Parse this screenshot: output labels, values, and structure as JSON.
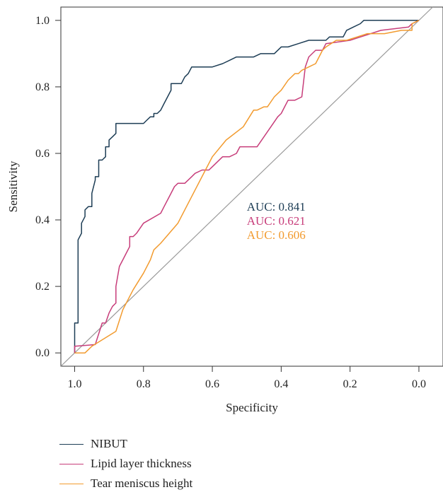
{
  "chart_data": {
    "type": "line",
    "title": "",
    "xlabel": "Specificity",
    "ylabel": "Sensitivity",
    "x_reversed": true,
    "xlim": [
      1.04,
      -0.07
    ],
    "ylim": [
      -0.04,
      1.04
    ],
    "x_ticks": [
      1.0,
      0.8,
      0.6,
      0.4,
      0.2,
      0.0
    ],
    "x_tick_labels": [
      "1.0",
      "0.8",
      "0.6",
      "0.4",
      "0.2",
      "0.0"
    ],
    "y_ticks": [
      0.0,
      0.2,
      0.4,
      0.6,
      0.8,
      1.0
    ],
    "y_tick_labels": [
      "0.0",
      "0.2",
      "0.4",
      "0.6",
      "0.8",
      "1.0"
    ],
    "grid": false,
    "legend_position": "bottom",
    "reference_line": {
      "color": "#9a9a9a",
      "points": [
        [
          1.04,
          -0.04
        ],
        [
          -0.04,
          1.04
        ]
      ]
    },
    "series": [
      {
        "name": "NIBUT",
        "color": "#1d3d55",
        "auc_label": "AUC: 0.841",
        "points": [
          [
            1.0,
            0.0
          ],
          [
            1.0,
            0.09
          ],
          [
            0.99,
            0.09
          ],
          [
            0.99,
            0.34
          ],
          [
            0.98,
            0.36
          ],
          [
            0.98,
            0.39
          ],
          [
            0.97,
            0.41
          ],
          [
            0.97,
            0.43
          ],
          [
            0.96,
            0.44
          ],
          [
            0.95,
            0.44
          ],
          [
            0.95,
            0.48
          ],
          [
            0.94,
            0.52
          ],
          [
            0.94,
            0.53
          ],
          [
            0.93,
            0.53
          ],
          [
            0.93,
            0.58
          ],
          [
            0.92,
            0.58
          ],
          [
            0.91,
            0.59
          ],
          [
            0.91,
            0.62
          ],
          [
            0.9,
            0.62
          ],
          [
            0.9,
            0.64
          ],
          [
            0.89,
            0.65
          ],
          [
            0.88,
            0.66
          ],
          [
            0.88,
            0.69
          ],
          [
            0.83,
            0.69
          ],
          [
            0.8,
            0.69
          ],
          [
            0.79,
            0.7
          ],
          [
            0.78,
            0.71
          ],
          [
            0.77,
            0.71
          ],
          [
            0.77,
            0.72
          ],
          [
            0.76,
            0.72
          ],
          [
            0.75,
            0.73
          ],
          [
            0.74,
            0.75
          ],
          [
            0.73,
            0.77
          ],
          [
            0.72,
            0.79
          ],
          [
            0.72,
            0.81
          ],
          [
            0.7,
            0.81
          ],
          [
            0.69,
            0.81
          ],
          [
            0.68,
            0.83
          ],
          [
            0.67,
            0.84
          ],
          [
            0.66,
            0.86
          ],
          [
            0.6,
            0.86
          ],
          [
            0.57,
            0.87
          ],
          [
            0.55,
            0.88
          ],
          [
            0.53,
            0.89
          ],
          [
            0.48,
            0.89
          ],
          [
            0.46,
            0.9
          ],
          [
            0.42,
            0.9
          ],
          [
            0.4,
            0.92
          ],
          [
            0.38,
            0.92
          ],
          [
            0.35,
            0.93
          ],
          [
            0.32,
            0.94
          ],
          [
            0.27,
            0.94
          ],
          [
            0.26,
            0.95
          ],
          [
            0.22,
            0.95
          ],
          [
            0.21,
            0.97
          ],
          [
            0.19,
            0.98
          ],
          [
            0.17,
            0.99
          ],
          [
            0.16,
            1.0
          ],
          [
            0.0,
            1.0
          ]
        ]
      },
      {
        "name": "Lipid layer thickness",
        "color": "#c73d7a",
        "auc_label": "AUC: 0.621",
        "points": [
          [
            1.0,
            0.0
          ],
          [
            1.0,
            0.02
          ],
          [
            0.94,
            0.025
          ],
          [
            0.92,
            0.09
          ],
          [
            0.91,
            0.09
          ],
          [
            0.9,
            0.12
          ],
          [
            0.89,
            0.14
          ],
          [
            0.88,
            0.15
          ],
          [
            0.88,
            0.2
          ],
          [
            0.87,
            0.26
          ],
          [
            0.86,
            0.28
          ],
          [
            0.85,
            0.3
          ],
          [
            0.84,
            0.32
          ],
          [
            0.84,
            0.35
          ],
          [
            0.83,
            0.35
          ],
          [
            0.82,
            0.36
          ],
          [
            0.8,
            0.39
          ],
          [
            0.75,
            0.42
          ],
          [
            0.74,
            0.44
          ],
          [
            0.72,
            0.48
          ],
          [
            0.71,
            0.5
          ],
          [
            0.7,
            0.51
          ],
          [
            0.68,
            0.51
          ],
          [
            0.66,
            0.53
          ],
          [
            0.65,
            0.54
          ],
          [
            0.63,
            0.55
          ],
          [
            0.61,
            0.55
          ],
          [
            0.6,
            0.56
          ],
          [
            0.57,
            0.59
          ],
          [
            0.55,
            0.59
          ],
          [
            0.53,
            0.6
          ],
          [
            0.52,
            0.62
          ],
          [
            0.47,
            0.62
          ],
          [
            0.43,
            0.68
          ],
          [
            0.41,
            0.71
          ],
          [
            0.4,
            0.72
          ],
          [
            0.39,
            0.74
          ],
          [
            0.38,
            0.76
          ],
          [
            0.36,
            0.76
          ],
          [
            0.34,
            0.77
          ],
          [
            0.33,
            0.86
          ],
          [
            0.32,
            0.89
          ],
          [
            0.31,
            0.9
          ],
          [
            0.3,
            0.91
          ],
          [
            0.28,
            0.91
          ],
          [
            0.27,
            0.93
          ],
          [
            0.2,
            0.94
          ],
          [
            0.17,
            0.95
          ],
          [
            0.11,
            0.97
          ],
          [
            0.03,
            0.98
          ],
          [
            0.02,
            0.99
          ],
          [
            0.0,
            1.0
          ]
        ]
      },
      {
        "name": "Tear meniscus height",
        "color": "#f29b2f",
        "auc_label": "AUC: 0.606",
        "points": [
          [
            1.0,
            0.0
          ],
          [
            0.99,
            0.0
          ],
          [
            0.97,
            0.0
          ],
          [
            0.95,
            0.02
          ],
          [
            0.88,
            0.065
          ],
          [
            0.86,
            0.13
          ],
          [
            0.83,
            0.19
          ],
          [
            0.8,
            0.24
          ],
          [
            0.78,
            0.28
          ],
          [
            0.77,
            0.31
          ],
          [
            0.75,
            0.33
          ],
          [
            0.7,
            0.39
          ],
          [
            0.65,
            0.49
          ],
          [
            0.62,
            0.55
          ],
          [
            0.6,
            0.59
          ],
          [
            0.56,
            0.64
          ],
          [
            0.51,
            0.68
          ],
          [
            0.48,
            0.73
          ],
          [
            0.47,
            0.73
          ],
          [
            0.45,
            0.74
          ],
          [
            0.44,
            0.74
          ],
          [
            0.42,
            0.77
          ],
          [
            0.4,
            0.79
          ],
          [
            0.38,
            0.82
          ],
          [
            0.36,
            0.84
          ],
          [
            0.35,
            0.84
          ],
          [
            0.34,
            0.85
          ],
          [
            0.32,
            0.86
          ],
          [
            0.3,
            0.87
          ],
          [
            0.28,
            0.91
          ],
          [
            0.27,
            0.92
          ],
          [
            0.24,
            0.94
          ],
          [
            0.21,
            0.94
          ],
          [
            0.18,
            0.95
          ],
          [
            0.15,
            0.96
          ],
          [
            0.1,
            0.96
          ],
          [
            0.05,
            0.97
          ],
          [
            0.02,
            0.97
          ],
          [
            0.02,
            0.99
          ],
          [
            0.0,
            1.0
          ]
        ]
      }
    ]
  }
}
